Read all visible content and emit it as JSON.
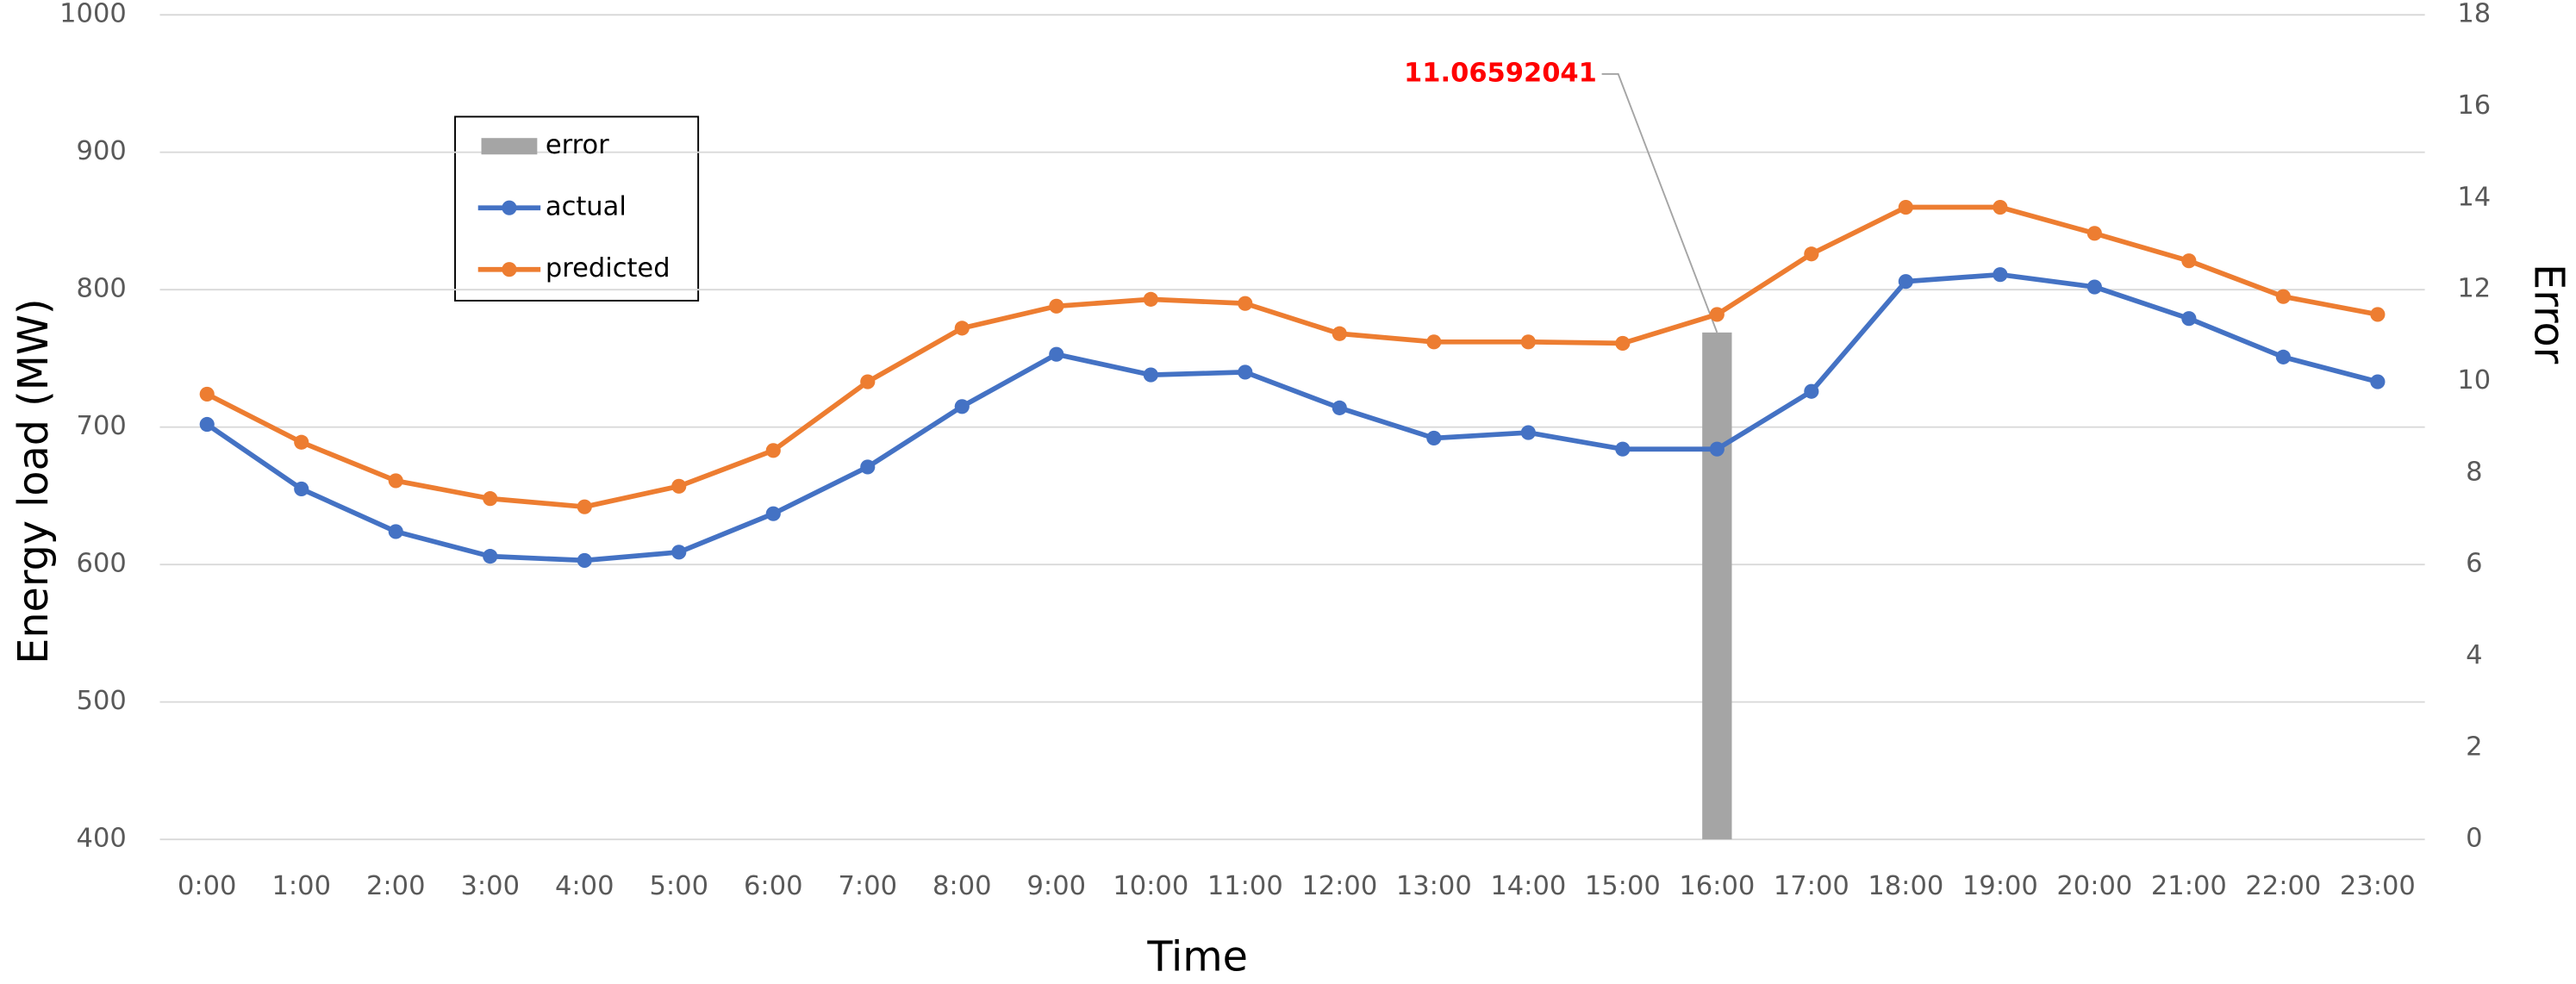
{
  "chart_data": {
    "type": "line",
    "x_label": "Time",
    "y_label": "Energy load  (MW)",
    "y2_label": "Error",
    "categories": [
      "0:00",
      "1:00",
      "2:00",
      "3:00",
      "4:00",
      "5:00",
      "6:00",
      "7:00",
      "8:00",
      "9:00",
      "10:00",
      "11:00",
      "12:00",
      "13:00",
      "14:00",
      "15:00",
      "16:00",
      "17:00",
      "18:00",
      "19:00",
      "20:00",
      "21:00",
      "22:00",
      "23:00"
    ],
    "series": [
      {
        "name": "error",
        "type": "bar",
        "axis": "y2",
        "color": "#a5a5a5",
        "values": [
          null,
          null,
          null,
          null,
          null,
          null,
          null,
          null,
          null,
          null,
          null,
          null,
          null,
          null,
          null,
          null,
          11.06592041,
          null,
          null,
          null,
          null,
          null,
          null,
          null
        ]
      },
      {
        "name": "actual",
        "color": "#4472c4",
        "values": [
          702,
          655,
          624,
          606,
          603,
          609,
          637,
          671,
          715,
          753,
          738,
          740,
          714,
          692,
          696,
          684,
          684,
          726,
          806,
          811,
          802,
          779,
          751,
          733
        ]
      },
      {
        "name": "predicted",
        "color": "#ed7d31",
        "values": [
          724,
          689,
          661,
          648,
          642,
          657,
          683,
          733,
          772,
          788,
          793,
          790,
          768,
          762,
          762,
          761,
          782,
          826,
          860,
          860,
          841,
          821,
          795,
          782
        ]
      }
    ],
    "ylim": [
      400,
      1000
    ],
    "yticks": [
      400,
      500,
      600,
      700,
      800,
      900,
      1000
    ],
    "y2lim": [
      0,
      18
    ],
    "y2ticks": [
      0,
      2,
      4,
      6,
      8,
      10,
      12,
      14,
      16,
      18
    ],
    "grid": true,
    "annotation_color": "#ff0000"
  }
}
